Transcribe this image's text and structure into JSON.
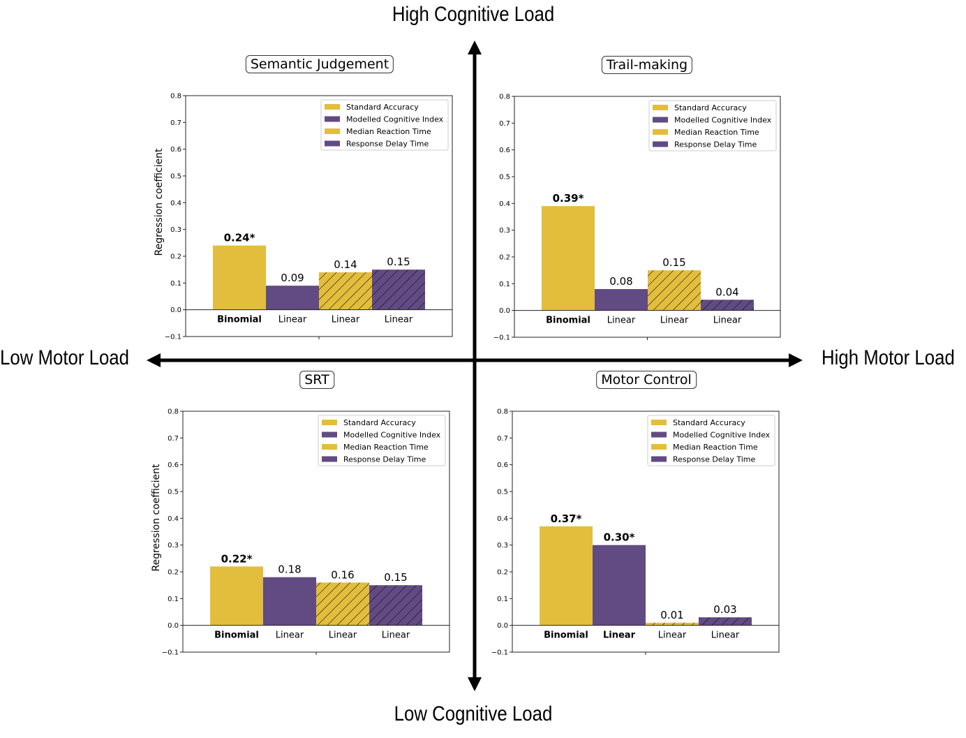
{
  "axis_labels": {
    "top": "High Cognitive Load",
    "bottom": "Low Cognitive Load",
    "left": "Low Motor Load",
    "right": "High Motor Load"
  },
  "colors": {
    "yellow": "#e3be3c",
    "purple": "#624a83"
  },
  "legend": [
    "Standard Accuracy",
    "Modelled Cognitive Index",
    "Median Reaction Time",
    "Response Delay Time"
  ],
  "chart_data": [
    {
      "type": "bar",
      "title": "Semantic Judgement",
      "ylabel": "Regression coefficient",
      "ylim": [
        -0.1,
        0.8
      ],
      "yticks": [
        "0.8",
        "0.7",
        "0.6",
        "0.5",
        "0.4",
        "0.3",
        "0.2",
        "0.1",
        "0.0",
        "−0.1"
      ],
      "categories": [
        "Binomial",
        "Linear",
        "Linear",
        "Linear"
      ],
      "series": [
        {
          "name": "Standard Accuracy",
          "value": 0.24,
          "label": "0.24*",
          "bold": true
        },
        {
          "name": "Modelled Cognitive Index",
          "value": 0.09,
          "label": "0.09",
          "bold": false
        },
        {
          "name": "Median Reaction Time",
          "value": 0.14,
          "label": "0.14",
          "bold": false
        },
        {
          "name": "Response Delay Time",
          "value": 0.15,
          "label": "0.15",
          "bold": false
        }
      ]
    },
    {
      "type": "bar",
      "title": "Trail-making",
      "ylabel": "",
      "ylim": [
        -0.1,
        0.8
      ],
      "yticks": [
        "0.8",
        "0.7",
        "0.6",
        "0.5",
        "0.4",
        "0.3",
        "0.2",
        "0.1",
        "0.0",
        "−0.1"
      ],
      "categories": [
        "Binomial",
        "Linear",
        "Linear",
        "Linear"
      ],
      "series": [
        {
          "name": "Standard Accuracy",
          "value": 0.39,
          "label": "0.39*",
          "bold": true
        },
        {
          "name": "Modelled Cognitive Index",
          "value": 0.08,
          "label": "0.08",
          "bold": false
        },
        {
          "name": "Median Reaction Time",
          "value": 0.15,
          "label": "0.15",
          "bold": false
        },
        {
          "name": "Response Delay Time",
          "value": 0.04,
          "label": "0.04",
          "bold": false
        }
      ]
    },
    {
      "type": "bar",
      "title": "SRT",
      "ylabel": "Regression coefficient",
      "ylim": [
        -0.1,
        0.8
      ],
      "yticks": [
        "0.8",
        "0.7",
        "0.6",
        "0.5",
        "0.4",
        "0.3",
        "0.2",
        "0.1",
        "0.0",
        "−0.1"
      ],
      "categories": [
        "Binomial",
        "Linear",
        "Linear",
        "Linear"
      ],
      "series": [
        {
          "name": "Standard Accuracy",
          "value": 0.22,
          "label": "0.22*",
          "bold": true
        },
        {
          "name": "Modelled Cognitive Index",
          "value": 0.18,
          "label": "0.18",
          "bold": false
        },
        {
          "name": "Median Reaction Time",
          "value": 0.16,
          "label": "0.16",
          "bold": false
        },
        {
          "name": "Response Delay Time",
          "value": 0.15,
          "label": "0.15",
          "bold": false
        }
      ]
    },
    {
      "type": "bar",
      "title": "Motor Control",
      "ylabel": "",
      "ylim": [
        -0.1,
        0.8
      ],
      "yticks": [
        "0.8",
        "0.7",
        "0.6",
        "0.5",
        "0.4",
        "0.3",
        "0.2",
        "0.1",
        "0.0",
        "−0.1"
      ],
      "categories": [
        "Binomial",
        "Linear",
        "Linear",
        "Linear"
      ],
      "category_bold": [
        true,
        true,
        false,
        false
      ],
      "series": [
        {
          "name": "Standard Accuracy",
          "value": 0.37,
          "label": "0.37*",
          "bold": true
        },
        {
          "name": "Modelled Cognitive Index",
          "value": 0.3,
          "label": "0.30*",
          "bold": true
        },
        {
          "name": "Median Reaction Time",
          "value": 0.01,
          "label": "0.01",
          "bold": false
        },
        {
          "name": "Response Delay Time",
          "value": 0.03,
          "label": "0.03",
          "bold": false
        }
      ]
    }
  ]
}
